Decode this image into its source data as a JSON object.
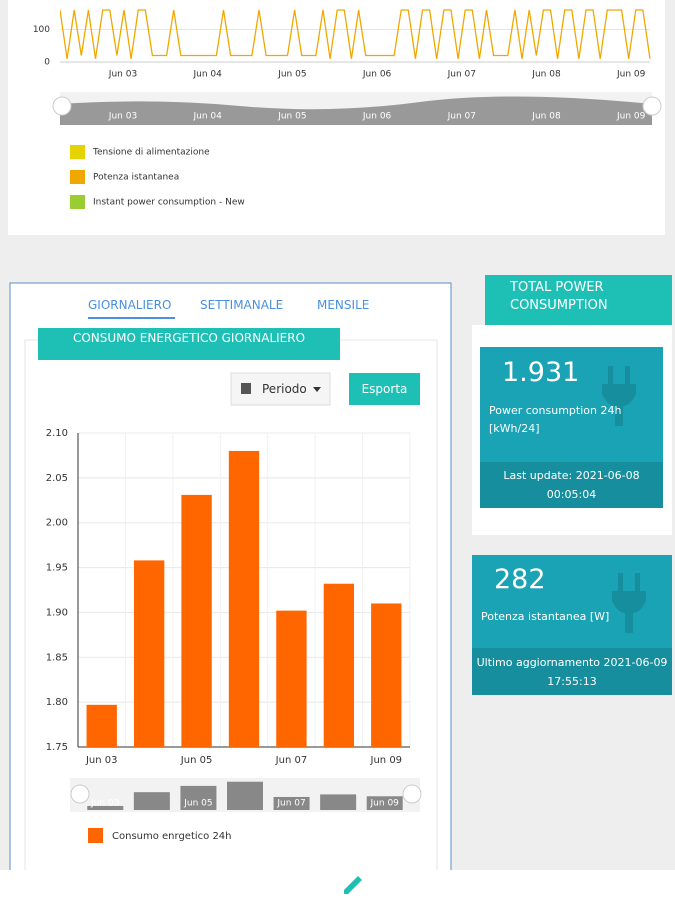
{
  "top_chart": {
    "type": "line",
    "ylim": [
      0,
      160
    ],
    "yticks": [
      0,
      100
    ],
    "xlabels": [
      "Jun 03",
      "Jun 04",
      "Jun 05",
      "Jun 06",
      "Jun 07",
      "Jun 08",
      "Jun 09"
    ],
    "color": "#f0a800",
    "values": [
      160,
      10,
      160,
      20,
      160,
      10,
      160,
      160,
      20,
      160,
      10,
      160,
      160,
      20,
      20,
      20,
      160,
      20,
      20,
      20,
      20,
      20,
      20,
      160,
      20,
      20,
      20,
      20,
      160,
      20,
      20,
      20,
      20,
      160,
      20,
      20,
      20,
      160,
      10,
      160,
      160,
      10,
      160,
      20,
      20,
      20,
      20,
      20,
      160,
      160,
      10,
      160,
      160,
      10,
      160,
      160,
      10,
      160,
      160,
      10,
      160,
      20,
      20,
      20,
      160,
      10,
      160,
      20,
      160,
      160,
      10,
      160,
      160,
      10,
      160,
      160,
      10,
      160,
      160,
      160,
      10,
      160,
      160,
      10
    ],
    "legend": [
      {
        "name": "Tensione di alimentazione",
        "color": "#e6d200"
      },
      {
        "name": "Potenza istantanea",
        "color": "#f0a800"
      },
      {
        "name": "Instant power consumption - New",
        "color": "#9acd32"
      }
    ]
  },
  "tabs": [
    "GIORNALIERO",
    "SETTIMANALE",
    "MENSILE"
  ],
  "panel_title": "CONSUMO ENERGETICO GIORNALIERO",
  "buttons": {
    "period": "Periodo",
    "export": "Esporta"
  },
  "chart_data": {
    "type": "bar",
    "categories": [
      "Jun 03",
      null,
      "Jun 05",
      null,
      "Jun 07",
      null,
      "Jun 09"
    ],
    "series": [
      {
        "name": "Consumo enrgetico 24h",
        "color": "#ff6600",
        "values": [
          1.797,
          1.958,
          2.031,
          2.08,
          1.902,
          1.932,
          1.91
        ]
      }
    ],
    "ylim": [
      1.75,
      2.1
    ],
    "yticks": [
      1.75,
      {
        "value": 1.8,
        "label": "1.80"
      },
      1.85,
      {
        "value": 1.9,
        "label": "1.90"
      },
      1.95,
      {
        "value": 2.0,
        "label": "2.00"
      },
      2.05,
      {
        "value": 2.1,
        "label": "2.10"
      }
    ],
    "grid": true
  },
  "summary": {
    "title": "TOTAL POWER CONSUMPTION",
    "cards": [
      {
        "value": 1.931,
        "label": "Power consumption 24h [kWh/24]",
        "update": "Last update: 2021-06-08 00:05:04"
      },
      {
        "value": 282,
        "label": "Potenza istantanea [W]",
        "update": "Ultimo aggiornamento 2021-06-09 17:55:13"
      }
    ]
  }
}
